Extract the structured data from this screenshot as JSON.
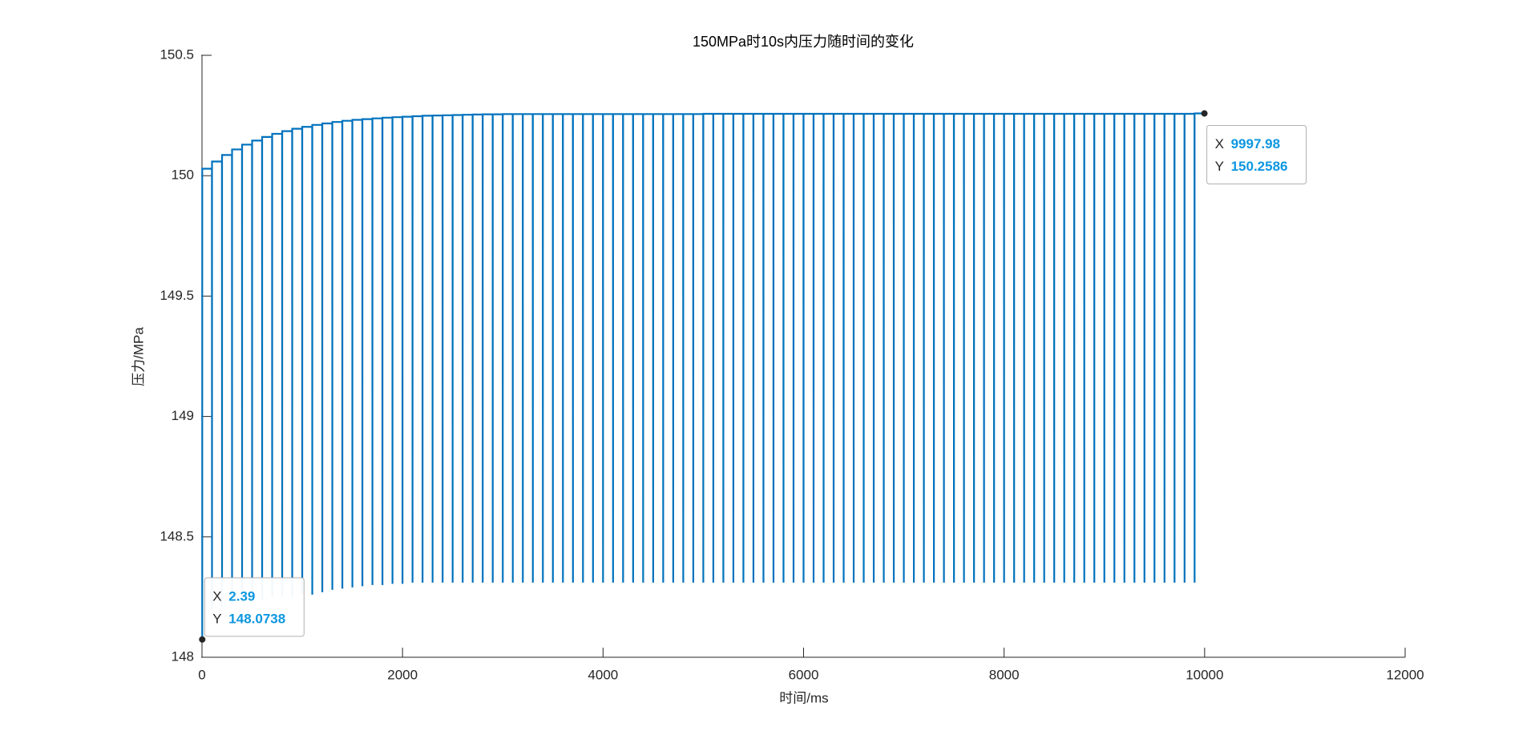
{
  "chart_data": {
    "type": "line",
    "title": "150MPa时10s内压力随时间的变化",
    "x_label": "时间/ms",
    "y_label": "压力/MPa",
    "xlim": [
      0,
      12000
    ],
    "xticks": [
      0,
      2000,
      4000,
      6000,
      8000,
      10000,
      12000
    ],
    "ylim": [
      148,
      150.5
    ],
    "yticks": [
      148,
      148.5,
      149,
      149.5,
      150,
      150.5
    ],
    "color": "#0072BD",
    "x": [
      2.39,
      2.39,
      99,
      100,
      100,
      199,
      200,
      200,
      299,
      300,
      300,
      399,
      400,
      400,
      499,
      500,
      500,
      599,
      600,
      600,
      699,
      700,
      700,
      799,
      800,
      800,
      899,
      900,
      900,
      999,
      1000,
      1000,
      1099,
      1100,
      1100,
      1199,
      1200,
      1200,
      1299,
      1300,
      1300,
      1399,
      1400,
      1400,
      1499,
      1500,
      1500,
      1599,
      1600,
      1600,
      1699,
      1700,
      1700,
      1799,
      1800,
      1800,
      1899,
      1900,
      1900,
      1999,
      2000,
      2000,
      2099,
      2100,
      2100,
      2199,
      2200,
      2200,
      2299,
      2300,
      2300,
      2399,
      2400,
      2400,
      2499,
      2500,
      2500,
      2599,
      2600,
      2600,
      2699,
      2700,
      2700,
      2799,
      2800,
      2800,
      2899,
      2900,
      2900,
      2999,
      3000,
      3000,
      3099,
      3100,
      3100,
      3199,
      3200,
      3200,
      3299,
      3300,
      3300,
      3399,
      3400,
      3400,
      3499,
      3500,
      3500,
      3599,
      3600,
      3600,
      3699,
      3700,
      3700,
      3799,
      3800,
      3800,
      3899,
      3900,
      3900,
      3999,
      4000,
      4000,
      4099,
      4100,
      4100,
      4199,
      4200,
      4200,
      4299,
      4300,
      4300,
      4399,
      4400,
      4400,
      4499,
      4500,
      4500,
      4599,
      4600,
      4600,
      4699,
      4700,
      4700,
      4799,
      4800,
      4800,
      4899,
      4900,
      4900,
      4999,
      5000,
      5000,
      5099,
      5100,
      5100,
      5199,
      5200,
      5200,
      5299,
      5300,
      5300,
      5399,
      5400,
      5400,
      5499,
      5500,
      5500,
      5599,
      5600,
      5600,
      5699,
      5700,
      5700,
      5799,
      5800,
      5800,
      5899,
      5900,
      5900,
      5999,
      6000,
      6000,
      6099,
      6100,
      6100,
      6199,
      6200,
      6200,
      6299,
      6300,
      6300,
      6399,
      6400,
      6400,
      6499,
      6500,
      6500,
      6599,
      6600,
      6600,
      6699,
      6700,
      6700,
      6799,
      6800,
      6800,
      6899,
      6900,
      6900,
      6999,
      7000,
      7000,
      7099,
      7100,
      7100,
      7199,
      7200,
      7200,
      7299,
      7300,
      7300,
      7399,
      7400,
      7400,
      7499,
      7500,
      7500,
      7599,
      7600,
      7600,
      7699,
      7700,
      7700,
      7799,
      7800,
      7800,
      7899,
      7900,
      7900,
      7999,
      8000,
      8000,
      8099,
      8100,
      8100,
      8199,
      8200,
      8200,
      8299,
      8300,
      8300,
      8399,
      8400,
      8400,
      8499,
      8500,
      8500,
      8599,
      8600,
      8600,
      8699,
      8700,
      8700,
      8799,
      8800,
      8800,
      8899,
      8900,
      8900,
      8999,
      9000,
      9000,
      9099,
      9100,
      9100,
      9199,
      9200,
      9200,
      9299,
      9300,
      9300,
      9399,
      9400,
      9400,
      9499,
      9500,
      9500,
      9599,
      9600,
      9600,
      9699,
      9700,
      9700,
      9799,
      9800,
      9800,
      9899,
      9900,
      9900,
      9997.98
    ],
    "values": [
      148.0738,
      150.029,
      150.029,
      148.2,
      150.059,
      150.059,
      148.21,
      150.086,
      150.086,
      148.22,
      150.109,
      150.109,
      148.23,
      150.129,
      150.129,
      148.24,
      150.146,
      150.146,
      148.24,
      150.161,
      150.161,
      148.25,
      150.174,
      150.174,
      148.25,
      150.185,
      150.185,
      148.25,
      150.195,
      150.195,
      148.26,
      150.203,
      150.203,
      148.26,
      150.211,
      150.211,
      148.27,
      150.217,
      150.217,
      148.28,
      150.223,
      150.223,
      148.285,
      150.228,
      150.228,
      148.29,
      150.232,
      150.232,
      148.295,
      150.235,
      150.235,
      148.3,
      150.238,
      150.238,
      148.3,
      150.241,
      150.241,
      148.305,
      150.243,
      150.243,
      148.305,
      150.245,
      150.245,
      148.31,
      150.247,
      150.247,
      148.31,
      150.249,
      150.249,
      148.31,
      150.25,
      150.25,
      148.31,
      150.251,
      150.251,
      148.31,
      150.252,
      150.252,
      148.31,
      150.253,
      150.253,
      148.31,
      150.254,
      150.254,
      148.31,
      150.255,
      150.255,
      148.31,
      150.255,
      150.255,
      148.31,
      150.256,
      150.256,
      148.31,
      150.256,
      150.256,
      148.31,
      150.256,
      150.256,
      148.31,
      150.256,
      150.256,
      148.31,
      150.256,
      150.256,
      148.31,
      150.256,
      150.256,
      148.31,
      150.256,
      150.256,
      148.31,
      150.256,
      150.256,
      148.31,
      150.256,
      150.256,
      148.31,
      150.256,
      150.256,
      148.31,
      150.256,
      150.256,
      148.31,
      150.256,
      150.256,
      148.31,
      150.256,
      150.256,
      148.31,
      150.256,
      150.256,
      148.31,
      150.256,
      150.256,
      148.31,
      150.256,
      150.256,
      148.31,
      150.256,
      150.256,
      148.31,
      150.256,
      150.256,
      148.31,
      150.256,
      150.256,
      148.31,
      150.256,
      150.256,
      148.31,
      150.257,
      150.257,
      148.31,
      150.257,
      150.257,
      148.31,
      150.257,
      150.257,
      148.31,
      150.257,
      150.257,
      148.31,
      150.257,
      150.257,
      148.31,
      150.257,
      150.257,
      148.31,
      150.257,
      150.257,
      148.31,
      150.257,
      150.257,
      148.31,
      150.257,
      150.257,
      148.31,
      150.257,
      150.257,
      148.31,
      150.257,
      150.257,
      148.31,
      150.257,
      150.257,
      148.31,
      150.257,
      150.257,
      148.31,
      150.257,
      150.257,
      148.31,
      150.257,
      150.257,
      148.31,
      150.257,
      150.257,
      148.31,
      150.257,
      150.257,
      148.31,
      150.257,
      150.257,
      148.31,
      150.257,
      150.257,
      148.31,
      150.257,
      150.257,
      148.31,
      150.257,
      150.257,
      148.31,
      150.257,
      150.257,
      148.31,
      150.257,
      150.257,
      148.31,
      150.257,
      150.257,
      148.31,
      150.257,
      150.257,
      148.31,
      150.257,
      150.257,
      148.31,
      150.257,
      150.257,
      148.31,
      150.257,
      150.257,
      148.31,
      150.257,
      150.257,
      148.31,
      150.257,
      150.257,
      148.31,
      150.257,
      150.257,
      148.31,
      150.257,
      150.257,
      148.31,
      150.257,
      150.257,
      148.31,
      150.257,
      150.257,
      148.31,
      150.257,
      150.257,
      148.31,
      150.257,
      150.257,
      148.31,
      150.257,
      150.257,
      148.31,
      150.257,
      150.257,
      148.31,
      150.257,
      150.257,
      148.31,
      150.257,
      150.257,
      148.31,
      150.257,
      150.257,
      148.31,
      150.257,
      150.257,
      148.31,
      150.257,
      150.257,
      148.31,
      150.257,
      150.257,
      148.31,
      150.257,
      150.257,
      148.31,
      150.257,
      150.257,
      148.31,
      150.257,
      150.257,
      148.31,
      150.257,
      150.257,
      148.31,
      150.257,
      150.257,
      148.31,
      150.2586,
      150.2586
    ],
    "datatip_labels": [
      "X",
      "Y"
    ],
    "datatips": [
      {
        "x": 2.39,
        "y": 148.0738
      },
      {
        "x": 9997.98,
        "y": 150.2586
      }
    ]
  }
}
